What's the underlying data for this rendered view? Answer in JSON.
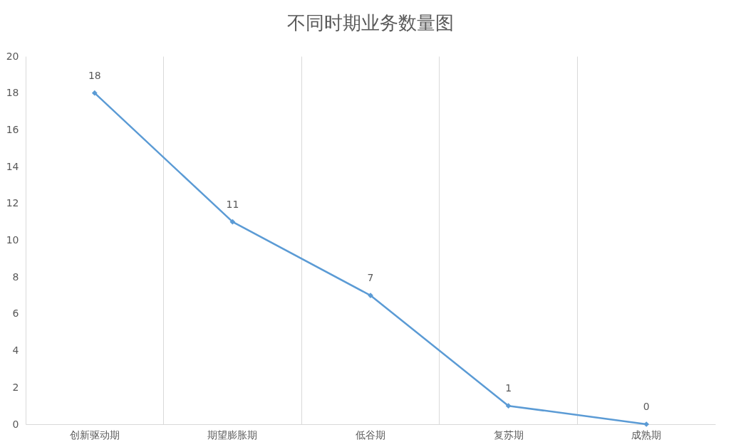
{
  "chart_data": {
    "type": "line",
    "title": "不同时期业务数量图",
    "categories": [
      "创新驱动期",
      "期望膨胀期",
      "低谷期",
      "复苏期",
      "成熟期"
    ],
    "values": [
      18,
      11,
      7,
      1,
      0
    ],
    "color": "#5b9bd5",
    "ylim": [
      0,
      20
    ],
    "yticks": [
      0,
      2,
      4,
      6,
      8,
      10,
      12,
      14,
      16,
      18,
      20
    ],
    "grid": "x",
    "marker": "diamond",
    "data_labels": true
  }
}
